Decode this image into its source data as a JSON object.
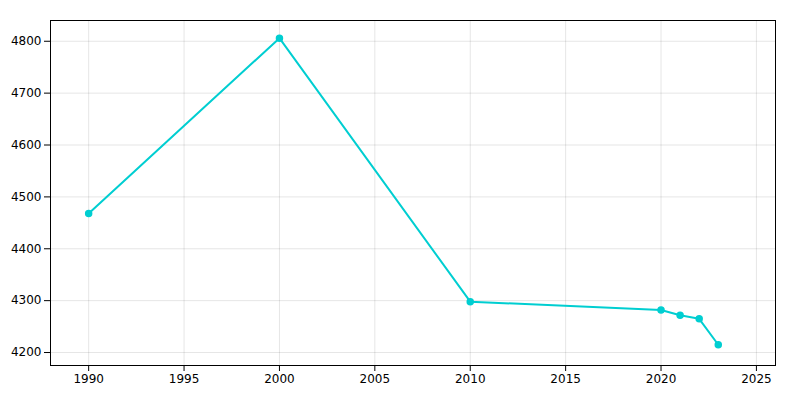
{
  "chart_data": {
    "type": "line",
    "x": [
      1990,
      2000,
      2010,
      2020,
      2021,
      2022,
      2023
    ],
    "values": [
      4468,
      4806,
      4298,
      4282,
      4272,
      4265,
      4215
    ],
    "color": "#00CED1",
    "marker": "circle",
    "xlim": [
      1988,
      2026
    ],
    "ylim": [
      4175,
      4840
    ],
    "xticks": [
      1990,
      1995,
      2000,
      2005,
      2010,
      2015,
      2020,
      2025
    ],
    "yticks": [
      4200,
      4300,
      4400,
      4500,
      4600,
      4700,
      4800
    ],
    "grid": true
  }
}
